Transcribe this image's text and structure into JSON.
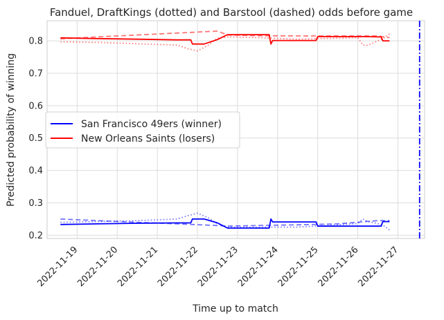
{
  "chart_data": {
    "type": "line",
    "title": "Fanduel, DraftKings (dotted) and Barstool (dashed) odds before game",
    "xlabel": "Time up to match",
    "ylabel": "Predicted probability of winning",
    "xlim": [
      "2022-11-18T06:00",
      "2022-11-27T16:00"
    ],
    "ylim": [
      0.19,
      0.862
    ],
    "grid": true,
    "legend_position": "center-left",
    "x_ticks": [
      "2022-11-19",
      "2022-11-20",
      "2022-11-21",
      "2022-11-22",
      "2022-11-23",
      "2022-11-24",
      "2022-11-25",
      "2022-11-26",
      "2022-11-27"
    ],
    "y_ticks": [
      0.2,
      0.3,
      0.4,
      0.5,
      0.6,
      0.7,
      0.8
    ],
    "game_time": "2022-11-27T13:00",
    "game_line_color": "#0000ff",
    "series": [
      {
        "name": "San Francisco 49ers (winner)",
        "book": "Fanduel",
        "style": "solid",
        "color": "#0000ff",
        "opacity": 1,
        "in_legend": true,
        "x": [
          "2022-11-18T14:00",
          "2022-11-19T12:00",
          "2022-11-20T12:00",
          "2022-11-21T12:00",
          "2022-11-21T20:00",
          "2022-11-21T21:00",
          "2022-11-22T04:00",
          "2022-11-22T12:00",
          "2022-11-22T18:00",
          "2022-11-23T12:00",
          "2022-11-23T19:00",
          "2022-11-23T20:00",
          "2022-11-23T21:00",
          "2022-11-24T12:00",
          "2022-11-24T23:00",
          "2022-11-25T00:00",
          "2022-11-26T02:00",
          "2022-11-26T03:00",
          "2022-11-26T06:00",
          "2022-11-26T12:00",
          "2022-11-26T14:00",
          "2022-11-26T15:00",
          "2022-11-26T18:00",
          "2022-11-26T19:00"
        ],
        "y": [
          0.233,
          0.235,
          0.237,
          0.238,
          0.238,
          0.25,
          0.25,
          0.238,
          0.222,
          0.222,
          0.222,
          0.25,
          0.241,
          0.241,
          0.241,
          0.228,
          0.228,
          0.228,
          0.228,
          0.228,
          0.228,
          0.242,
          0.242,
          0.242
        ]
      },
      {
        "name": "New Orleans Saints (losers)",
        "book": "Fanduel",
        "style": "solid",
        "color": "#ff0000",
        "opacity": 1,
        "in_legend": true,
        "x": [
          "2022-11-18T14:00",
          "2022-11-19T12:00",
          "2022-11-20T12:00",
          "2022-11-21T12:00",
          "2022-11-21T20:00",
          "2022-11-21T21:00",
          "2022-11-22T04:00",
          "2022-11-22T12:00",
          "2022-11-22T18:00",
          "2022-11-23T12:00",
          "2022-11-23T19:00",
          "2022-11-23T20:00",
          "2022-11-23T21:00",
          "2022-11-24T12:00",
          "2022-11-24T23:00",
          "2022-11-25T00:00",
          "2022-11-26T02:00",
          "2022-11-26T03:00",
          "2022-11-26T06:00",
          "2022-11-26T12:00",
          "2022-11-26T14:00",
          "2022-11-26T15:00",
          "2022-11-26T18:00",
          "2022-11-26T19:00"
        ],
        "y": [
          0.809,
          0.807,
          0.805,
          0.803,
          0.803,
          0.79,
          0.79,
          0.804,
          0.819,
          0.819,
          0.819,
          0.79,
          0.801,
          0.801,
          0.801,
          0.813,
          0.813,
          0.813,
          0.813,
          0.812,
          0.812,
          0.8,
          0.8,
          0.8
        ]
      },
      {
        "name": "",
        "book": "DraftKings",
        "style": "dotted",
        "color": "#0000ff",
        "opacity": 0.55,
        "in_legend": false,
        "x": [
          "2022-11-18T14:00",
          "2022-11-19T12:00",
          "2022-11-20T12:00",
          "2022-11-21T12:00",
          "2022-11-21T18:00",
          "2022-11-22T00:00",
          "2022-11-22T06:00",
          "2022-11-22T12:00",
          "2022-11-22T18:00",
          "2022-11-23T12:00",
          "2022-11-24T12:00",
          "2022-11-25T12:00",
          "2022-11-26T00:00",
          "2022-11-26T03:00",
          "2022-11-26T06:00",
          "2022-11-26T12:00",
          "2022-11-26T16:00",
          "2022-11-26T19:00"
        ],
        "y": [
          0.24,
          0.242,
          0.245,
          0.25,
          0.26,
          0.268,
          0.255,
          0.235,
          0.225,
          0.225,
          0.225,
          0.232,
          0.236,
          0.25,
          0.242,
          0.236,
          0.228,
          0.216
        ]
      },
      {
        "name": "",
        "book": "DraftKings",
        "style": "dotted",
        "color": "#ff0000",
        "opacity": 0.55,
        "in_legend": false,
        "x": [
          "2022-11-18T14:00",
          "2022-11-19T12:00",
          "2022-11-20T12:00",
          "2022-11-21T12:00",
          "2022-11-21T18:00",
          "2022-11-22T00:00",
          "2022-11-22T06:00",
          "2022-11-22T12:00",
          "2022-11-22T18:00",
          "2022-11-23T12:00",
          "2022-11-24T12:00",
          "2022-11-25T12:00",
          "2022-11-26T00:00",
          "2022-11-26T03:00",
          "2022-11-26T06:00",
          "2022-11-26T12:00",
          "2022-11-26T16:00",
          "2022-11-26T19:00"
        ],
        "y": [
          0.797,
          0.795,
          0.791,
          0.787,
          0.776,
          0.769,
          0.785,
          0.808,
          0.812,
          0.81,
          0.805,
          0.808,
          0.81,
          0.787,
          0.786,
          0.8,
          0.81,
          0.822
        ]
      },
      {
        "name": "",
        "book": "Barstool",
        "style": "dashed",
        "color": "#0000ff",
        "opacity": 0.55,
        "in_legend": false,
        "x": [
          "2022-11-18T14:00",
          "2022-11-19T12:00",
          "2022-11-20T12:00",
          "2022-11-21T12:00",
          "2022-11-22T12:00",
          "2022-11-22T18:00",
          "2022-11-23T12:00",
          "2022-11-24T12:00",
          "2022-11-25T12:00",
          "2022-11-26T12:00",
          "2022-11-26T19:00"
        ],
        "y": [
          0.25,
          0.245,
          0.24,
          0.235,
          0.23,
          0.228,
          0.23,
          0.232,
          0.235,
          0.245,
          0.245
        ]
      },
      {
        "name": "",
        "book": "Barstool",
        "style": "dashed",
        "color": "#ff0000",
        "opacity": 0.55,
        "in_legend": false,
        "x": [
          "2022-11-18T14:00",
          "2022-11-19T12:00",
          "2022-11-20T12:00",
          "2022-11-21T12:00",
          "2022-11-22T12:00",
          "2022-11-22T18:00",
          "2022-11-23T12:00",
          "2022-11-24T12:00",
          "2022-11-25T12:00",
          "2022-11-26T12:00",
          "2022-11-26T19:00"
        ],
        "y": [
          0.806,
          0.812,
          0.818,
          0.824,
          0.83,
          0.818,
          0.816,
          0.815,
          0.815,
          0.815,
          0.81
        ]
      }
    ]
  }
}
